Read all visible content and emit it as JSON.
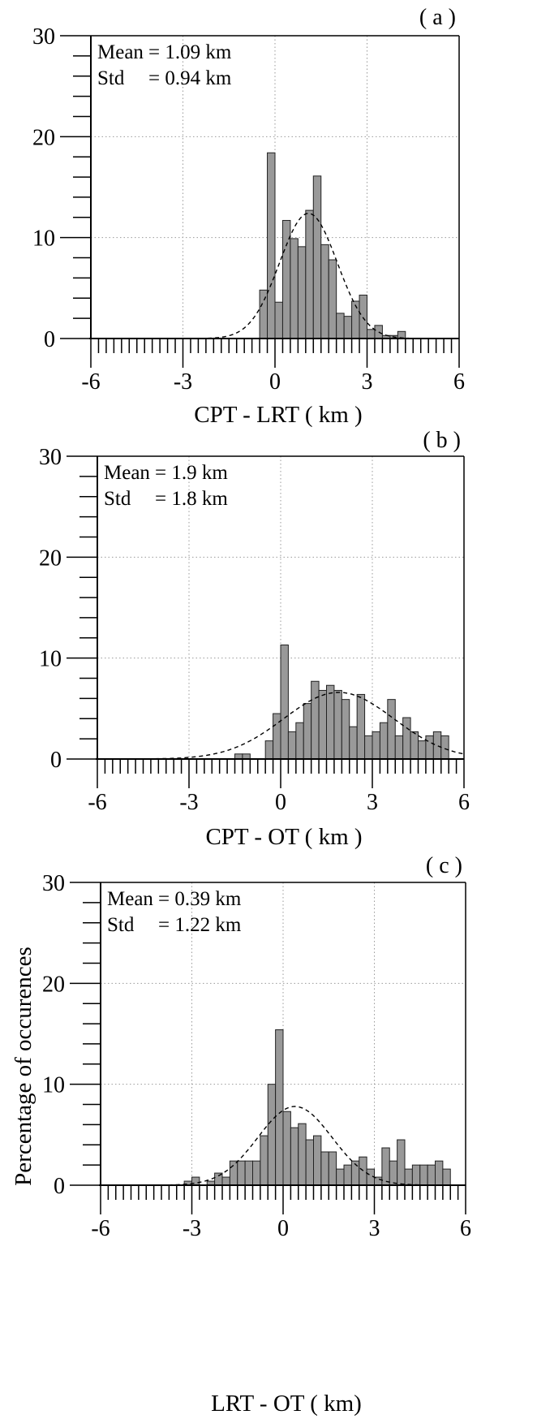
{
  "chart_data": [
    {
      "type": "bar",
      "panel_label": "( a )",
      "xlabel": "CPT - LRT  ( km )",
      "ylabel": "",
      "xlim": [
        -6,
        6
      ],
      "ylim": [
        0,
        30
      ],
      "xticks": [
        "-6",
        "-3",
        "0",
        "3",
        "6"
      ],
      "yticks": [
        "0",
        "10",
        "20",
        "30"
      ],
      "grid": "dotted vertical at -3, 0, 3; dotted horizontal at 10, 20",
      "bin_width": 0.25,
      "stats": {
        "mean_label": "Mean",
        "mean_value": "= 1.09 km",
        "std_label": "Std",
        "std_value": "= 0.94 km"
      },
      "fit_curve": {
        "type": "gaussian",
        "mean": 1.09,
        "std": 0.94,
        "peak": 12.4
      },
      "bins": [
        {
          "x": -0.375,
          "y": 4.8
        },
        {
          "x": -0.125,
          "y": 18.4
        },
        {
          "x": 0.125,
          "y": 3.6
        },
        {
          "x": 0.375,
          "y": 11.7
        },
        {
          "x": 0.625,
          "y": 9.9
        },
        {
          "x": 0.875,
          "y": 9.1
        },
        {
          "x": 1.125,
          "y": 12.7
        },
        {
          "x": 1.375,
          "y": 16.1
        },
        {
          "x": 1.625,
          "y": 9.3
        },
        {
          "x": 1.875,
          "y": 7.8
        },
        {
          "x": 2.125,
          "y": 2.5
        },
        {
          "x": 2.375,
          "y": 2.2
        },
        {
          "x": 2.625,
          "y": 3.7
        },
        {
          "x": 2.875,
          "y": 4.3
        },
        {
          "x": 3.125,
          "y": 0.9
        },
        {
          "x": 3.375,
          "y": 1.3
        },
        {
          "x": 3.625,
          "y": 0.3
        },
        {
          "x": 3.875,
          "y": 0.3
        },
        {
          "x": 4.125,
          "y": 0.7
        }
      ]
    },
    {
      "type": "bar",
      "panel_label": "( b )",
      "xlabel": "CPT - OT  ( km )",
      "ylabel": "",
      "xlim": [
        -6,
        6
      ],
      "ylim": [
        0,
        30
      ],
      "xticks": [
        "-6",
        "-3",
        "0",
        "3",
        "6"
      ],
      "yticks": [
        "0",
        "10",
        "20",
        "30"
      ],
      "grid": "dotted vertical at -3, 0, 3; dotted horizontal at 10, 20",
      "bin_width": 0.25,
      "stats": {
        "mean_label": "Mean",
        "mean_value": "= 1.9  km",
        "std_label": "Std",
        "std_value": "= 1.8  km"
      },
      "fit_curve": {
        "type": "gaussian",
        "mean": 1.9,
        "std": 1.8,
        "peak": 6.6
      },
      "bins": [
        {
          "x": -1.375,
          "y": 0.5
        },
        {
          "x": -1.125,
          "y": 0.5
        },
        {
          "x": -0.375,
          "y": 1.8
        },
        {
          "x": -0.125,
          "y": 4.5
        },
        {
          "x": 0.125,
          "y": 11.3
        },
        {
          "x": 0.375,
          "y": 2.7
        },
        {
          "x": 0.625,
          "y": 3.6
        },
        {
          "x": 0.875,
          "y": 5.5
        },
        {
          "x": 1.125,
          "y": 7.7
        },
        {
          "x": 1.375,
          "y": 6.8
        },
        {
          "x": 1.625,
          "y": 7.3
        },
        {
          "x": 1.875,
          "y": 6.8
        },
        {
          "x": 2.125,
          "y": 5.9
        },
        {
          "x": 2.375,
          "y": 3.2
        },
        {
          "x": 2.625,
          "y": 6.4
        },
        {
          "x": 2.875,
          "y": 2.3
        },
        {
          "x": 3.125,
          "y": 2.7
        },
        {
          "x": 3.375,
          "y": 3.6
        },
        {
          "x": 3.625,
          "y": 5.9
        },
        {
          "x": 3.875,
          "y": 2.3
        },
        {
          "x": 4.125,
          "y": 4.1
        },
        {
          "x": 4.375,
          "y": 2.7
        },
        {
          "x": 4.625,
          "y": 1.8
        },
        {
          "x": 4.875,
          "y": 2.3
        },
        {
          "x": 5.125,
          "y": 2.7
        },
        {
          "x": 5.375,
          "y": 2.3
        }
      ]
    },
    {
      "type": "bar",
      "panel_label": "( c )",
      "xlabel": "LRT - OT  ( km)",
      "ylabel": "Percentage of occurences",
      "xlim": [
        -6,
        6
      ],
      "ylim": [
        0,
        30
      ],
      "xticks": [
        "-6",
        "-3",
        "0",
        "3",
        "6"
      ],
      "yticks": [
        "0",
        "10",
        "20",
        "30"
      ],
      "grid": "dotted vertical at -3, 0, 3; dotted horizontal at 10, 20",
      "bin_width": 0.25,
      "stats": {
        "mean_label": "Mean",
        "mean_value": "= 0.39 km",
        "std_label": "Std",
        "std_value": "= 1.22 km"
      },
      "fit_curve": {
        "type": "gaussian",
        "mean": 0.39,
        "std": 1.22,
        "peak": 7.8
      },
      "bins": [
        {
          "x": -3.125,
          "y": 0.4
        },
        {
          "x": -2.875,
          "y": 0.8
        },
        {
          "x": -2.375,
          "y": 0.4
        },
        {
          "x": -2.125,
          "y": 1.2
        },
        {
          "x": -1.875,
          "y": 0.8
        },
        {
          "x": -1.625,
          "y": 2.4
        },
        {
          "x": -1.375,
          "y": 2.4
        },
        {
          "x": -1.125,
          "y": 2.4
        },
        {
          "x": -0.875,
          "y": 2.4
        },
        {
          "x": -0.625,
          "y": 4.9
        },
        {
          "x": -0.375,
          "y": 10.0
        },
        {
          "x": -0.125,
          "y": 15.4
        },
        {
          "x": 0.125,
          "y": 7.3
        },
        {
          "x": 0.375,
          "y": 5.7
        },
        {
          "x": 0.625,
          "y": 6.1
        },
        {
          "x": 0.875,
          "y": 4.5
        },
        {
          "x": 1.125,
          "y": 4.9
        },
        {
          "x": 1.375,
          "y": 3.3
        },
        {
          "x": 1.625,
          "y": 3.3
        },
        {
          "x": 1.875,
          "y": 1.6
        },
        {
          "x": 2.125,
          "y": 2.0
        },
        {
          "x": 2.375,
          "y": 2.4
        },
        {
          "x": 2.625,
          "y": 2.8
        },
        {
          "x": 2.875,
          "y": 1.6
        },
        {
          "x": 3.125,
          "y": 0.8
        },
        {
          "x": 3.375,
          "y": 3.7
        },
        {
          "x": 3.625,
          "y": 2.4
        },
        {
          "x": 3.875,
          "y": 4.5
        },
        {
          "x": 4.125,
          "y": 1.6
        },
        {
          "x": 4.375,
          "y": 2.0
        },
        {
          "x": 4.625,
          "y": 2.0
        },
        {
          "x": 4.875,
          "y": 2.0
        },
        {
          "x": 5.125,
          "y": 2.4
        },
        {
          "x": 5.375,
          "y": 1.6
        }
      ]
    }
  ]
}
